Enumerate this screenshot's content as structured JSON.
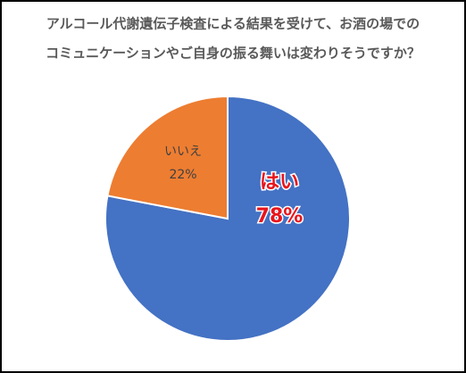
{
  "chart_data": {
    "type": "pie",
    "title": [
      "アルコール代謝遺伝子検査による結果を受けて、お酒の場での",
      "コミュニケーションやご自身の振る舞いは変わりそうですか？"
    ],
    "categories": [
      "はい",
      "いいえ"
    ],
    "values": [
      78,
      22
    ],
    "value_labels": [
      "78%",
      "22%"
    ],
    "colors": [
      "#4472c4",
      "#ed7d31"
    ]
  }
}
